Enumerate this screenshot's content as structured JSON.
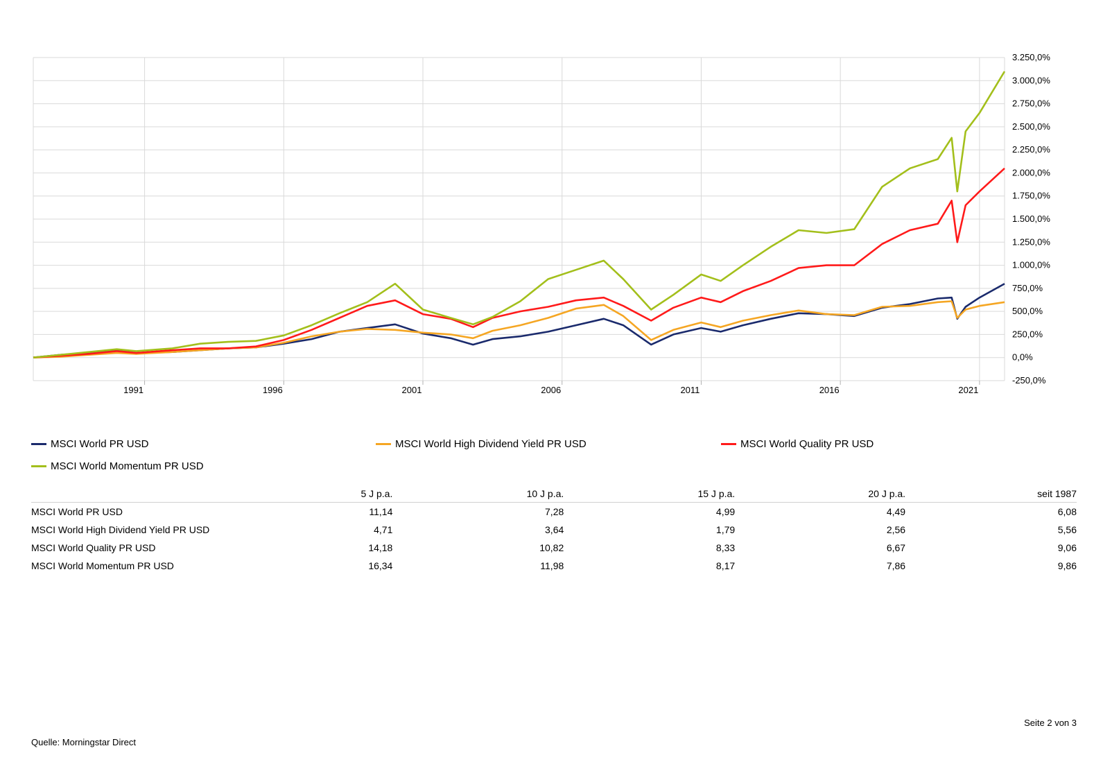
{
  "chart_data": {
    "type": "line",
    "y_unit": "%",
    "y_ticks": [
      "3.250,0%",
      "3.000,0%",
      "2.750,0%",
      "2.500,0%",
      "2.250,0%",
      "2.000,0%",
      "1.750,0%",
      "1.500,0%",
      "1.250,0%",
      "1.000,0%",
      "750,0%",
      "500,0%",
      "250,0%",
      "0,0%",
      "-250,0%"
    ],
    "ylim": [
      -250,
      3250
    ],
    "x_ticks": [
      "1991",
      "1996",
      "2001",
      "2006",
      "2011",
      "2016",
      "2021"
    ],
    "xlim": [
      1987.0,
      2021.9
    ],
    "grid": true,
    "legend_position": "bottom",
    "series": [
      {
        "name": "MSCI World PR USD",
        "color": "#1a2a6c",
        "x": [
          1987.0,
          1988.0,
          1989.0,
          1990.0,
          1990.7,
          1992.0,
          1993.0,
          1994.0,
          1995.0,
          1996.0,
          1997.0,
          1998.0,
          1999.0,
          2000.0,
          2001.0,
          2002.0,
          2002.8,
          2003.5,
          2004.5,
          2005.5,
          2006.5,
          2007.5,
          2008.2,
          2009.2,
          2010.0,
          2011.0,
          2011.7,
          2012.5,
          2013.5,
          2014.5,
          2015.5,
          2016.5,
          2017.5,
          2018.5,
          2019.5,
          2020.0,
          2020.2,
          2020.5,
          2021.0,
          2021.9
        ],
        "y": [
          0,
          30,
          50,
          80,
          50,
          60,
          80,
          100,
          110,
          150,
          200,
          280,
          320,
          360,
          260,
          210,
          140,
          200,
          230,
          280,
          350,
          420,
          350,
          140,
          250,
          320,
          280,
          350,
          420,
          480,
          470,
          450,
          540,
          580,
          640,
          650,
          420,
          550,
          650,
          800
        ]
      },
      {
        "name": "MSCI World High Dividend Yield PR USD",
        "color": "#f5a623",
        "x": [
          1987.0,
          1988.0,
          1989.0,
          1990.0,
          1990.7,
          1992.0,
          1993.0,
          1994.0,
          1995.0,
          1996.0,
          1997.0,
          1998.0,
          1999.0,
          2000.0,
          2001.0,
          2002.0,
          2002.8,
          2003.5,
          2004.5,
          2005.5,
          2006.5,
          2007.5,
          2008.2,
          2009.2,
          2010.0,
          2011.0,
          2011.7,
          2012.5,
          2013.5,
          2014.5,
          2015.5,
          2016.5,
          2017.5,
          2018.5,
          2019.5,
          2020.0,
          2020.2,
          2020.5,
          2021.0,
          2021.9
        ],
        "y": [
          0,
          10,
          30,
          50,
          40,
          60,
          80,
          100,
          110,
          160,
          230,
          280,
          310,
          300,
          270,
          250,
          210,
          290,
          350,
          430,
          530,
          570,
          450,
          190,
          300,
          380,
          330,
          400,
          460,
          510,
          470,
          460,
          550,
          560,
          600,
          610,
          430,
          520,
          560,
          600
        ]
      },
      {
        "name": "MSCI World Quality PR USD",
        "color": "#ff1a1a",
        "x": [
          1987.0,
          1988.0,
          1989.0,
          1990.0,
          1990.7,
          1992.0,
          1993.0,
          1994.0,
          1995.0,
          1996.0,
          1997.0,
          1998.0,
          1999.0,
          2000.0,
          2001.0,
          2002.0,
          2002.8,
          2003.5,
          2004.5,
          2005.5,
          2006.5,
          2007.5,
          2008.2,
          2009.2,
          2010.0,
          2011.0,
          2011.7,
          2012.5,
          2013.5,
          2014.5,
          2015.5,
          2016.5,
          2017.5,
          2018.5,
          2019.5,
          2020.0,
          2020.2,
          2020.5,
          2021.0,
          2021.9
        ],
        "y": [
          0,
          20,
          40,
          70,
          50,
          80,
          100,
          100,
          120,
          190,
          300,
          430,
          560,
          620,
          470,
          420,
          330,
          430,
          500,
          550,
          620,
          650,
          560,
          400,
          540,
          650,
          600,
          720,
          830,
          970,
          1000,
          1000,
          1230,
          1380,
          1450,
          1700,
          1250,
          1650,
          1800,
          2050
        ]
      },
      {
        "name": "MSCI World Momentum PR USD",
        "color": "#a3bf1b",
        "x": [
          1987.0,
          1988.0,
          1989.0,
          1990.0,
          1990.7,
          1992.0,
          1993.0,
          1994.0,
          1995.0,
          1996.0,
          1997.0,
          1998.0,
          1999.0,
          2000.0,
          2001.0,
          2002.0,
          2002.8,
          2003.5,
          2004.5,
          2005.5,
          2006.5,
          2007.5,
          2008.2,
          2009.2,
          2010.0,
          2011.0,
          2011.7,
          2012.5,
          2013.5,
          2014.5,
          2015.5,
          2016.5,
          2017.5,
          2018.5,
          2019.5,
          2020.0,
          2020.2,
          2020.5,
          2021.0,
          2021.9
        ],
        "y": [
          0,
          30,
          60,
          90,
          70,
          100,
          150,
          170,
          180,
          240,
          350,
          480,
          600,
          800,
          520,
          430,
          360,
          440,
          610,
          850,
          950,
          1050,
          850,
          520,
          680,
          900,
          830,
          1000,
          1200,
          1380,
          1350,
          1390,
          1850,
          2050,
          2150,
          2380,
          1800,
          2450,
          2650,
          3100
        ]
      }
    ]
  },
  "legend": {
    "s1": "MSCI World PR USD",
    "s2": "MSCI World High Dividend Yield PR USD",
    "s3": "MSCI World Quality PR USD",
    "s4": "MSCI World Momentum PR USD"
  },
  "table": {
    "headers": [
      "",
      "5 J p.a.",
      "10 J p.a.",
      "15 J p.a.",
      "20 J p.a.",
      "seit 1987"
    ],
    "rows": [
      {
        "name": "MSCI World PR USD",
        "values": [
          "11,14",
          "7,28",
          "4,99",
          "4,49",
          "6,08"
        ]
      },
      {
        "name": "MSCI World High Dividend Yield PR USD",
        "values": [
          "4,71",
          "3,64",
          "1,79",
          "2,56",
          "5,56"
        ]
      },
      {
        "name": "MSCI World Quality PR USD",
        "values": [
          "14,18",
          "10,82",
          "8,33",
          "6,67",
          "9,06"
        ]
      },
      {
        "name": "MSCI World Momentum PR USD",
        "values": [
          "16,34",
          "11,98",
          "8,17",
          "7,86",
          "9,86"
        ]
      }
    ]
  },
  "footer": {
    "page": "Seite 2 von 3",
    "source": "Quelle: Morningstar Direct"
  }
}
